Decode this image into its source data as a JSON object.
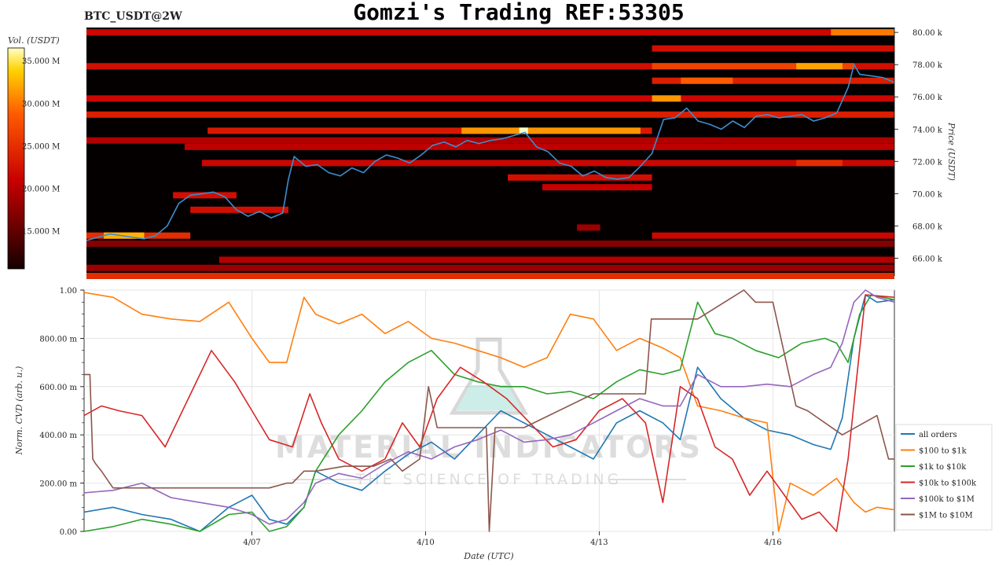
{
  "title": "Gomzi's Trading REF:53305",
  "ticker": "BTC_USDT@2W",
  "watermark": {
    "line1": "MATERIAL INDICATORS",
    "line2": "THE SCIENCE OF TRADING"
  },
  "colors": {
    "all_orders": "#1f77b4",
    "b100_1k": "#ff7f0e",
    "b1k_10k": "#2ca02c",
    "b10k_100k": "#d62728",
    "b100k_1m": "#9467bd",
    "b1m_10m": "#8c564b",
    "price_line": "#3a8fd0"
  },
  "chart_data": [
    {
      "type": "heatmap",
      "title": "",
      "colorbar": {
        "label": "Vol. (USDT)",
        "ticks": [
          "35.000 M",
          "30.000 M",
          "25.000 M",
          "20.000 M",
          "15.000 M"
        ],
        "tick_values": [
          35,
          30,
          25,
          20,
          15
        ],
        "range": [
          10.5,
          36.5
        ]
      },
      "y_axis": {
        "label": "Price (USDT)",
        "ticks": [
          "80.00 k",
          "78.00 k",
          "76.00 k",
          "74.00 k",
          "72.00 k",
          "70.00 k",
          "68.00 k",
          "66.00 k"
        ],
        "tick_values": [
          80,
          78,
          76,
          74,
          72,
          70,
          68,
          66
        ],
        "range": [
          64.9,
          80.3
        ]
      },
      "x_range": [
        0,
        14
      ],
      "bands": [
        {
          "price": 80.0,
          "x0": 0,
          "x1": 14,
          "int": 0.42
        },
        {
          "price": 80.0,
          "x0": 12.9,
          "x1": 14,
          "int": 0.75
        },
        {
          "price": 79.0,
          "x0": 9.8,
          "x1": 14,
          "int": 0.45
        },
        {
          "price": 77.9,
          "x0": 0,
          "x1": 14,
          "int": 0.45
        },
        {
          "price": 77.9,
          "x0": 9.8,
          "x1": 13.3,
          "int": 0.62
        },
        {
          "price": 77.9,
          "x0": 12.3,
          "x1": 13.1,
          "int": 0.82
        },
        {
          "price": 77.0,
          "x0": 9.8,
          "x1": 14,
          "int": 0.5
        },
        {
          "price": 77.0,
          "x0": 10.3,
          "x1": 11.2,
          "int": 0.7
        },
        {
          "price": 75.9,
          "x0": 0,
          "x1": 14,
          "int": 0.42
        },
        {
          "price": 75.9,
          "x0": 9.8,
          "x1": 10.3,
          "int": 0.8
        },
        {
          "price": 74.9,
          "x0": 0,
          "x1": 14,
          "int": 0.5
        },
        {
          "price": 73.9,
          "x0": 2.1,
          "x1": 9.8,
          "int": 0.48
        },
        {
          "price": 73.9,
          "x0": 6.5,
          "x1": 9.6,
          "int": 0.8
        },
        {
          "price": 73.9,
          "x0": 7.5,
          "x1": 7.65,
          "int": 1.0
        },
        {
          "price": 73.3,
          "x0": 0,
          "x1": 14,
          "int": 0.35
        },
        {
          "price": 72.9,
          "x0": 1.7,
          "x1": 14,
          "int": 0.38
        },
        {
          "price": 71.9,
          "x0": 2.0,
          "x1": 14,
          "int": 0.42
        },
        {
          "price": 71.9,
          "x0": 12.3,
          "x1": 13.1,
          "int": 0.55
        },
        {
          "price": 71.0,
          "x0": 7.3,
          "x1": 9.8,
          "int": 0.45
        },
        {
          "price": 70.4,
          "x0": 7.9,
          "x1": 9.8,
          "int": 0.4
        },
        {
          "price": 69.9,
          "x0": 1.5,
          "x1": 2.6,
          "int": 0.45
        },
        {
          "price": 69.0,
          "x0": 1.8,
          "x1": 3.5,
          "int": 0.45
        },
        {
          "price": 67.9,
          "x0": 8.5,
          "x1": 8.9,
          "int": 0.3
        },
        {
          "price": 67.4,
          "x0": 9.8,
          "x1": 14,
          "int": 0.42
        },
        {
          "price": 67.4,
          "x0": 0,
          "x1": 1.8,
          "int": 0.55
        },
        {
          "price": 67.4,
          "x0": 0.3,
          "x1": 1.0,
          "int": 0.85
        },
        {
          "price": 66.9,
          "x0": 0,
          "x1": 14,
          "int": 0.25
        },
        {
          "price": 65.9,
          "x0": 2.3,
          "x1": 14,
          "int": 0.36
        },
        {
          "price": 65.4,
          "x0": 0,
          "x1": 14,
          "int": 0.3
        },
        {
          "price": 64.9,
          "x0": 0,
          "x1": 14,
          "int": 0.55
        }
      ],
      "price_series": {
        "x": [
          0,
          0.2,
          0.4,
          0.6,
          0.8,
          1.0,
          1.2,
          1.4,
          1.6,
          1.8,
          2.0,
          2.2,
          2.4,
          2.6,
          2.8,
          3.0,
          3.2,
          3.4,
          3.5,
          3.6,
          3.8,
          4.0,
          4.2,
          4.4,
          4.6,
          4.8,
          5.0,
          5.2,
          5.4,
          5.6,
          5.8,
          6.0,
          6.2,
          6.4,
          6.6,
          6.8,
          7.0,
          7.2,
          7.4,
          7.6,
          7.8,
          8.0,
          8.2,
          8.4,
          8.6,
          8.8,
          9.0,
          9.2,
          9.4,
          9.6,
          9.8,
          10.0,
          10.2,
          10.4,
          10.6,
          10.8,
          11.0,
          11.2,
          11.4,
          11.6,
          11.8,
          12.0,
          12.2,
          12.4,
          12.6,
          12.8,
          13.0,
          13.2,
          13.3,
          13.4,
          13.6,
          13.8,
          14.0
        ],
        "y": [
          67.1,
          67.3,
          67.5,
          67.4,
          67.3,
          67.2,
          67.4,
          68.0,
          69.4,
          69.9,
          70.0,
          70.1,
          69.8,
          69.0,
          68.6,
          68.9,
          68.5,
          68.8,
          70.9,
          72.3,
          71.7,
          71.8,
          71.3,
          71.1,
          71.6,
          71.3,
          72.0,
          72.4,
          72.2,
          71.9,
          72.4,
          73.0,
          73.2,
          72.9,
          73.3,
          73.1,
          73.3,
          73.4,
          73.6,
          73.8,
          72.9,
          72.6,
          71.9,
          71.7,
          71.1,
          71.4,
          71.0,
          70.9,
          71.0,
          71.7,
          72.5,
          74.6,
          74.7,
          75.3,
          74.5,
          74.3,
          74.0,
          74.5,
          74.1,
          74.8,
          74.9,
          74.7,
          74.8,
          74.9,
          74.5,
          74.7,
          75.0,
          76.6,
          78.0,
          77.4,
          77.3,
          77.2,
          76.9
        ]
      }
    },
    {
      "type": "line",
      "title": "",
      "xlabel": "Date (UTC)",
      "ylabel": "Norm. CVD (arb. u.)",
      "x_ticks": [
        "4/07",
        "4/10",
        "4/13",
        "4/16"
      ],
      "x_tick_values": [
        2.9,
        5.9,
        8.9,
        11.9
      ],
      "x_range": [
        0,
        14
      ],
      "y_ticks": [
        "1.00",
        "800.00 m",
        "600.00 m",
        "400.00 m",
        "200.00 m",
        "0.00"
      ],
      "y_tick_values": [
        1.0,
        0.8,
        0.6,
        0.4,
        0.2,
        0.0
      ],
      "ylim": [
        0,
        1
      ],
      "grid": true,
      "legend_position": "right",
      "series": [
        {
          "name": "all orders",
          "color_key": "all_orders",
          "x": [
            0,
            0.5,
            1.0,
            1.5,
            2.0,
            2.5,
            2.9,
            3.2,
            3.5,
            3.8,
            4.0,
            4.4,
            4.8,
            5.2,
            5.6,
            6.0,
            6.4,
            6.8,
            7.2,
            7.6,
            8.0,
            8.4,
            8.8,
            9.2,
            9.6,
            10.0,
            10.3,
            10.6,
            11.0,
            11.4,
            11.8,
            12.2,
            12.6,
            12.9,
            13.1,
            13.3,
            13.5,
            13.7,
            14.0
          ],
          "y": [
            0.08,
            0.1,
            0.07,
            0.05,
            0.0,
            0.1,
            0.15,
            0.05,
            0.03,
            0.1,
            0.25,
            0.2,
            0.17,
            0.25,
            0.32,
            0.37,
            0.3,
            0.4,
            0.5,
            0.45,
            0.4,
            0.35,
            0.3,
            0.45,
            0.5,
            0.45,
            0.38,
            0.68,
            0.55,
            0.47,
            0.42,
            0.4,
            0.36,
            0.34,
            0.47,
            0.8,
            0.98,
            0.95,
            0.96
          ]
        },
        {
          "name": "$100 to $1k",
          "color_key": "b100_1k",
          "x": [
            0,
            0.5,
            1.0,
            1.5,
            2.0,
            2.5,
            2.9,
            3.2,
            3.5,
            3.8,
            4.0,
            4.4,
            4.8,
            5.2,
            5.6,
            6.0,
            6.4,
            6.8,
            7.2,
            7.6,
            8.0,
            8.4,
            8.8,
            9.2,
            9.6,
            10.0,
            10.3,
            10.6,
            11.0,
            11.4,
            11.8,
            12.0,
            12.2,
            12.6,
            13.0,
            13.3,
            13.5,
            13.7,
            14.0
          ],
          "y": [
            0.99,
            0.97,
            0.9,
            0.88,
            0.87,
            0.95,
            0.8,
            0.7,
            0.7,
            0.97,
            0.9,
            0.86,
            0.9,
            0.82,
            0.87,
            0.8,
            0.78,
            0.75,
            0.72,
            0.68,
            0.72,
            0.9,
            0.88,
            0.75,
            0.8,
            0.76,
            0.72,
            0.52,
            0.5,
            0.47,
            0.45,
            0.0,
            0.2,
            0.15,
            0.22,
            0.12,
            0.08,
            0.1,
            0.09
          ]
        },
        {
          "name": "$1k to $10k",
          "color_key": "b1k_10k",
          "x": [
            0,
            0.5,
            1.0,
            1.5,
            2.0,
            2.5,
            2.9,
            3.2,
            3.5,
            3.8,
            4.0,
            4.4,
            4.8,
            5.2,
            5.6,
            6.0,
            6.4,
            6.8,
            7.2,
            7.6,
            8.0,
            8.4,
            8.8,
            9.2,
            9.6,
            10.0,
            10.3,
            10.6,
            10.9,
            11.2,
            11.6,
            12.0,
            12.4,
            12.8,
            13.0,
            13.2,
            13.4,
            13.6,
            13.8,
            14.0
          ],
          "y": [
            0.0,
            0.02,
            0.05,
            0.03,
            0.0,
            0.07,
            0.08,
            0.0,
            0.02,
            0.1,
            0.25,
            0.4,
            0.5,
            0.62,
            0.7,
            0.75,
            0.65,
            0.62,
            0.6,
            0.6,
            0.57,
            0.58,
            0.55,
            0.62,
            0.67,
            0.65,
            0.67,
            0.95,
            0.82,
            0.8,
            0.75,
            0.72,
            0.78,
            0.8,
            0.78,
            0.7,
            0.9,
            0.98,
            0.97,
            0.96
          ]
        },
        {
          "name": "$10k to $100k",
          "color_key": "b10k_100k",
          "x": [
            0,
            0.3,
            0.6,
            1.0,
            1.4,
            1.8,
            2.2,
            2.6,
            2.9,
            3.2,
            3.6,
            3.9,
            4.1,
            4.4,
            4.8,
            5.2,
            5.5,
            5.8,
            6.1,
            6.5,
            6.9,
            7.3,
            7.7,
            8.1,
            8.5,
            8.9,
            9.3,
            9.7,
            10.0,
            10.3,
            10.6,
            10.9,
            11.2,
            11.5,
            11.8,
            12.1,
            12.4,
            12.7,
            13.0,
            13.2,
            13.5,
            14.0
          ],
          "y": [
            0.48,
            0.52,
            0.5,
            0.48,
            0.35,
            0.55,
            0.75,
            0.62,
            0.5,
            0.38,
            0.35,
            0.57,
            0.45,
            0.3,
            0.25,
            0.3,
            0.45,
            0.35,
            0.55,
            0.68,
            0.62,
            0.55,
            0.45,
            0.35,
            0.38,
            0.5,
            0.55,
            0.45,
            0.12,
            0.6,
            0.55,
            0.35,
            0.3,
            0.15,
            0.25,
            0.15,
            0.05,
            0.08,
            0.0,
            0.3,
            0.98,
            0.97
          ]
        },
        {
          "name": "$100k to $1M",
          "color_key": "b100k_1m",
          "x": [
            0,
            0.5,
            1.0,
            1.5,
            2.0,
            2.5,
            2.9,
            3.2,
            3.5,
            3.8,
            4.0,
            4.4,
            4.8,
            5.2,
            5.6,
            6.0,
            6.4,
            6.8,
            7.2,
            7.6,
            8.0,
            8.4,
            8.8,
            9.2,
            9.6,
            10.0,
            10.3,
            10.6,
            11.0,
            11.4,
            11.8,
            12.2,
            12.6,
            12.9,
            13.1,
            13.3,
            13.5,
            13.7,
            14.0
          ],
          "y": [
            0.16,
            0.17,
            0.2,
            0.14,
            0.12,
            0.1,
            0.07,
            0.03,
            0.05,
            0.12,
            0.2,
            0.24,
            0.22,
            0.28,
            0.33,
            0.3,
            0.35,
            0.38,
            0.42,
            0.37,
            0.38,
            0.4,
            0.45,
            0.5,
            0.55,
            0.52,
            0.52,
            0.65,
            0.6,
            0.6,
            0.61,
            0.6,
            0.65,
            0.68,
            0.78,
            0.95,
            1.0,
            0.97,
            0.95
          ]
        },
        {
          "name": "$1M to $10M",
          "color_key": "b1m_10m",
          "x": [
            0,
            0.1,
            0.15,
            0.2,
            0.3,
            0.5,
            3.2,
            3.5,
            3.6,
            3.8,
            4.0,
            4.5,
            5.0,
            5.3,
            5.5,
            5.8,
            5.95,
            6.1,
            6.8,
            6.95,
            7.0,
            7.1,
            7.6,
            8.8,
            8.9,
            9.7,
            9.8,
            9.9,
            10.4,
            10.6,
            11.4,
            11.6,
            11.9,
            12.3,
            12.5,
            13.1,
            13.7,
            13.9,
            14.0
          ],
          "y": [
            0.65,
            0.65,
            0.3,
            0.28,
            0.25,
            0.18,
            0.18,
            0.2,
            0.2,
            0.25,
            0.25,
            0.27,
            0.27,
            0.3,
            0.25,
            0.3,
            0.6,
            0.43,
            0.43,
            0.43,
            0.0,
            0.43,
            0.43,
            0.57,
            0.57,
            0.57,
            0.88,
            0.88,
            0.88,
            0.88,
            1.0,
            0.95,
            0.95,
            0.52,
            0.5,
            0.4,
            0.48,
            0.3,
            0.3
          ]
        }
      ]
    }
  ]
}
